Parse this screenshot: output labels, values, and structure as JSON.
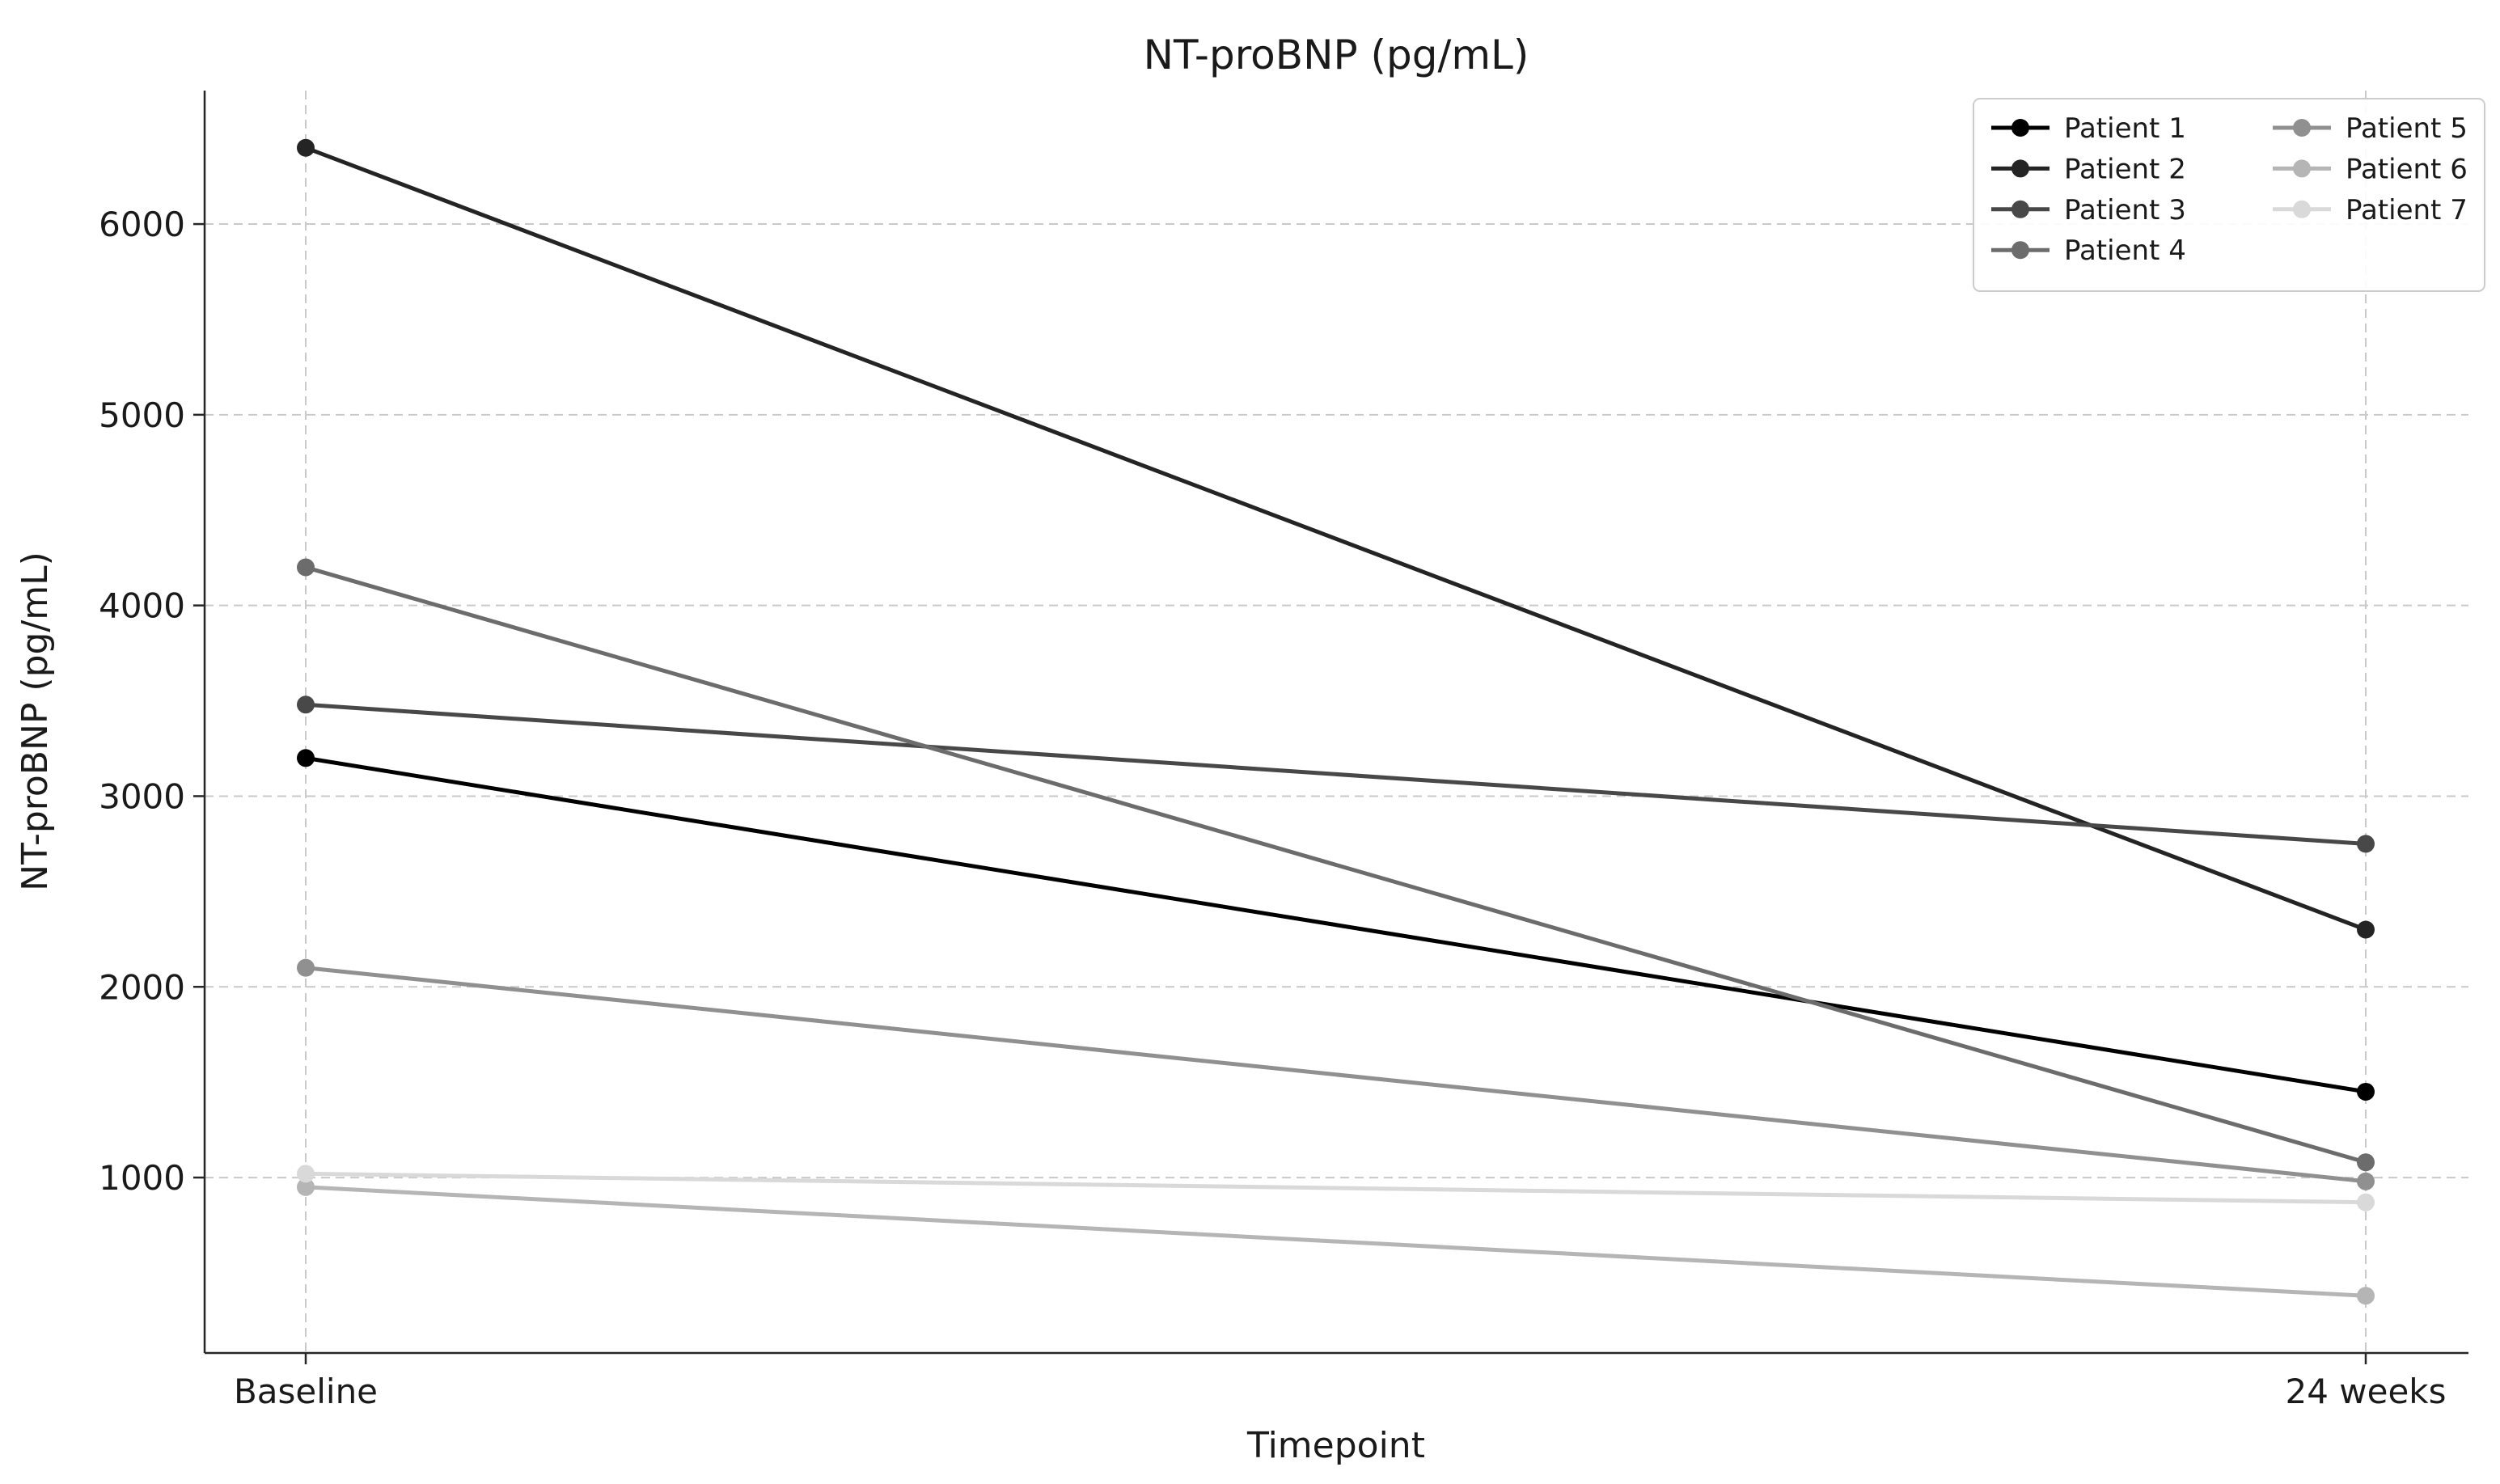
{
  "figure": {
    "background": "#ffffff",
    "grid_color": "#c9c9c9",
    "spine_color": "#262626",
    "text_color": "#1a1a1a"
  },
  "chart_data": {
    "type": "line",
    "title": "NT-proBNP (pg/mL)",
    "xlabel": "Timepoint",
    "ylabel": "NT-proBNP (pg/mL)",
    "categories": [
      "Baseline",
      "24 weeks"
    ],
    "yticks": [
      1000,
      2000,
      3000,
      4000,
      5000,
      6000
    ],
    "ylim": [
      80,
      6700
    ],
    "grid": true,
    "grid_style": "dashed",
    "legend_position": "upper right",
    "legend_columns": 2,
    "series": [
      {
        "name": "Patient 1",
        "color": "#000000",
        "values": [
          3200,
          1450
        ]
      },
      {
        "name": "Patient 2",
        "color": "#242424",
        "values": [
          6400,
          2300
        ]
      },
      {
        "name": "Patient 3",
        "color": "#484848",
        "values": [
          3480,
          2750
        ]
      },
      {
        "name": "Patient 4",
        "color": "#6c6c6c",
        "values": [
          4200,
          1080
        ]
      },
      {
        "name": "Patient 5",
        "color": "#909090",
        "values": [
          2100,
          980
        ]
      },
      {
        "name": "Patient 6",
        "color": "#b5b5b5",
        "values": [
          950,
          380
        ]
      },
      {
        "name": "Patient 7",
        "color": "#d9d9d9",
        "values": [
          1020,
          870
        ]
      }
    ]
  }
}
